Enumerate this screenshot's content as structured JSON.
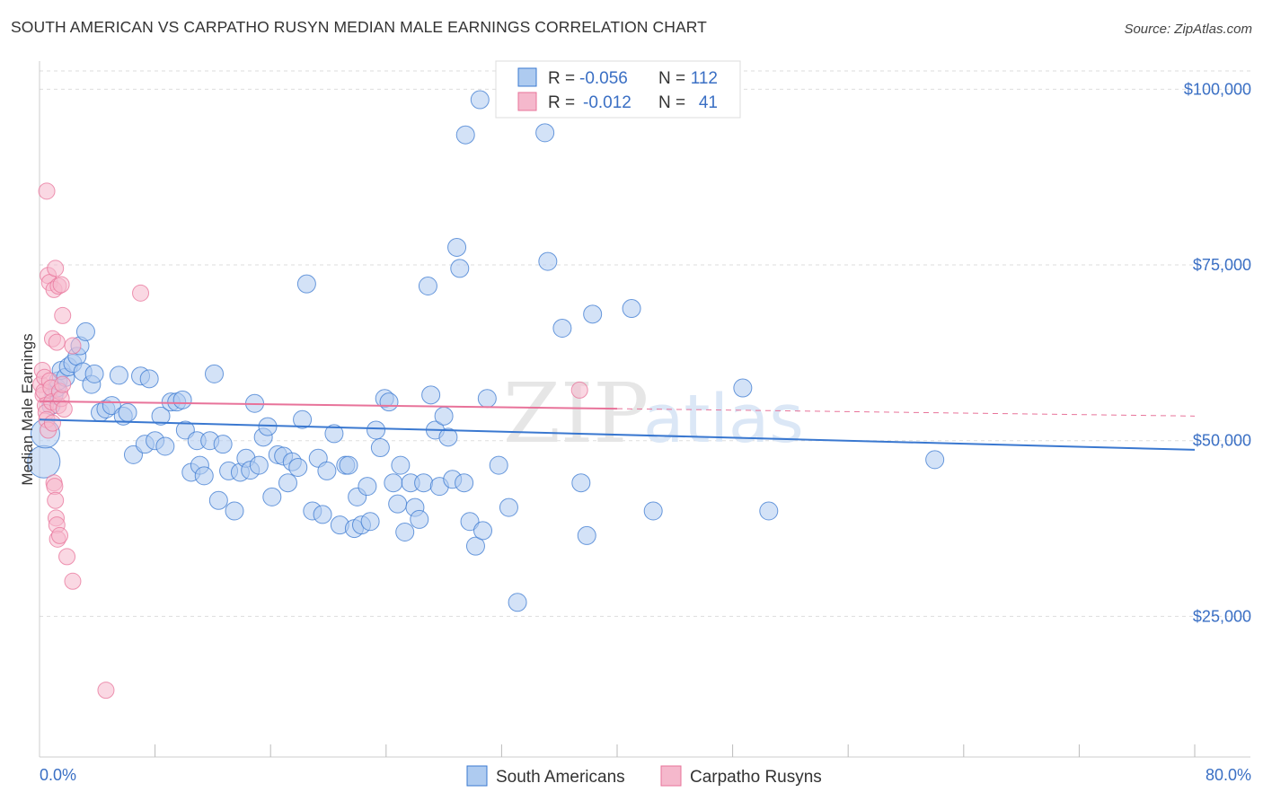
{
  "header": {
    "title": "SOUTH AMERICAN VS CARPATHO RUSYN MEDIAN MALE EARNINGS CORRELATION CHART",
    "source": "Source: ZipAtlas.com"
  },
  "watermark": {
    "zip": "ZIP",
    "atlas": "atlas"
  },
  "colors": {
    "blue": "#3a78d0",
    "blue_fill": "#aecbf0",
    "pink": "#e8739a",
    "pink_fill": "#f5b8cc",
    "label_blue": "#3a6fc4",
    "grid": "#dddddd"
  },
  "legend_top": {
    "r_label": "R =",
    "n_label": "N =",
    "rows": [
      {
        "r": "-0.056",
        "n": "112"
      },
      {
        "r": "-0.012",
        "n": "41"
      }
    ]
  },
  "chart_data": {
    "type": "scatter",
    "title": "SOUTH AMERICAN VS CARPATHO RUSYN MEDIAN MALE EARNINGS CORRELATION CHART",
    "ylabel": "Median Male Earnings",
    "xlabel": "",
    "xlim": [
      0,
      80
    ],
    "ylim": [
      5000,
      104000
    ],
    "x_tick_labels": {
      "min": "0.0%",
      "max": "80.0%"
    },
    "y_ticks": [
      {
        "value": 25000,
        "label": "$25,000"
      },
      {
        "value": 50000,
        "label": "$50,000"
      },
      {
        "value": 75000,
        "label": "$75,000"
      },
      {
        "value": 100000,
        "label": "$100,000"
      }
    ],
    "grid": true,
    "legend_position": "bottom",
    "series": [
      {
        "name": "South Americans",
        "color": "#3a78d0",
        "r": -0.056,
        "n": 112,
        "trend": {
          "x0": 0,
          "y0": 53000,
          "x1": 80,
          "y1": 48700,
          "dashed_from": null
        },
        "points": [
          [
            0.3,
            47000
          ],
          [
            0.4,
            51000
          ],
          [
            0.8,
            55000
          ],
          [
            1.0,
            56500
          ],
          [
            1.2,
            57500
          ],
          [
            1.3,
            58500
          ],
          [
            1.5,
            60000
          ],
          [
            1.8,
            59000
          ],
          [
            2.0,
            60500
          ],
          [
            2.3,
            61000
          ],
          [
            2.6,
            62000
          ],
          [
            2.8,
            63500
          ],
          [
            3.0,
            59800
          ],
          [
            3.2,
            65500
          ],
          [
            3.6,
            58000
          ],
          [
            3.8,
            59500
          ],
          [
            4.2,
            54000
          ],
          [
            4.6,
            54500
          ],
          [
            5.0,
            55000
          ],
          [
            5.5,
            59300
          ],
          [
            5.8,
            53500
          ],
          [
            6.1,
            54000
          ],
          [
            6.5,
            48000
          ],
          [
            7.0,
            59200
          ],
          [
            7.3,
            49500
          ],
          [
            7.6,
            58800
          ],
          [
            8.0,
            50000
          ],
          [
            8.4,
            53500
          ],
          [
            8.7,
            49200
          ],
          [
            9.1,
            55500
          ],
          [
            9.5,
            55500
          ],
          [
            9.9,
            55800
          ],
          [
            10.1,
            51500
          ],
          [
            10.5,
            45500
          ],
          [
            10.9,
            50000
          ],
          [
            11.1,
            46500
          ],
          [
            11.4,
            45000
          ],
          [
            11.8,
            50000
          ],
          [
            12.1,
            59500
          ],
          [
            12.4,
            41500
          ],
          [
            12.7,
            49500
          ],
          [
            13.1,
            45700
          ],
          [
            13.5,
            40000
          ],
          [
            13.9,
            45500
          ],
          [
            14.3,
            47500
          ],
          [
            14.6,
            45800
          ],
          [
            14.9,
            55300
          ],
          [
            15.2,
            46500
          ],
          [
            15.5,
            50500
          ],
          [
            15.8,
            52000
          ],
          [
            16.1,
            42000
          ],
          [
            16.5,
            48000
          ],
          [
            16.9,
            47800
          ],
          [
            17.2,
            44000
          ],
          [
            17.5,
            47000
          ],
          [
            17.9,
            46200
          ],
          [
            18.2,
            53000
          ],
          [
            18.5,
            72300
          ],
          [
            18.9,
            40000
          ],
          [
            19.3,
            47500
          ],
          [
            19.6,
            39500
          ],
          [
            19.9,
            45700
          ],
          [
            20.4,
            51000
          ],
          [
            20.8,
            38000
          ],
          [
            21.2,
            46500
          ],
          [
            21.4,
            46500
          ],
          [
            21.8,
            37500
          ],
          [
            22.0,
            42000
          ],
          [
            22.3,
            38000
          ],
          [
            22.7,
            43500
          ],
          [
            22.9,
            38500
          ],
          [
            23.3,
            51500
          ],
          [
            23.6,
            49000
          ],
          [
            23.9,
            56000
          ],
          [
            24.2,
            55500
          ],
          [
            24.5,
            44000
          ],
          [
            24.8,
            41000
          ],
          [
            25.0,
            46500
          ],
          [
            25.3,
            37000
          ],
          [
            25.7,
            44000
          ],
          [
            26.0,
            40500
          ],
          [
            26.3,
            38800
          ],
          [
            26.6,
            44000
          ],
          [
            26.9,
            72000
          ],
          [
            27.1,
            56500
          ],
          [
            27.4,
            51500
          ],
          [
            27.7,
            43500
          ],
          [
            28.0,
            53500
          ],
          [
            28.3,
            50500
          ],
          [
            28.6,
            44500
          ],
          [
            28.9,
            77500
          ],
          [
            29.1,
            74500
          ],
          [
            29.4,
            44000
          ],
          [
            29.8,
            38500
          ],
          [
            30.2,
            35000
          ],
          [
            30.7,
            37200
          ],
          [
            29.5,
            93500
          ],
          [
            30.5,
            98500
          ],
          [
            31.0,
            56000
          ],
          [
            31.8,
            46500
          ],
          [
            32.5,
            40500
          ],
          [
            33.1,
            27000
          ],
          [
            35.2,
            75500
          ],
          [
            35.0,
            93800
          ],
          [
            36.2,
            66000
          ],
          [
            37.5,
            44000
          ],
          [
            37.9,
            36500
          ],
          [
            38.3,
            68000
          ],
          [
            41.0,
            68800
          ],
          [
            42.5,
            40000
          ],
          [
            48.7,
            57500
          ],
          [
            50.5,
            40000
          ],
          [
            62.0,
            47300
          ]
        ]
      },
      {
        "name": "Carpatho Rusyns",
        "color": "#e8739a",
        "r": -0.012,
        "n": 41,
        "trend": {
          "x0": 0,
          "y0": 55600,
          "x1": 80,
          "y1": 53500,
          "dashed_from": 40
        },
        "points": [
          [
            0.1,
            58000
          ],
          [
            0.2,
            60000
          ],
          [
            0.25,
            56500
          ],
          [
            0.3,
            57000
          ],
          [
            0.35,
            59000
          ],
          [
            0.4,
            55000
          ],
          [
            0.45,
            54000
          ],
          [
            0.5,
            53000
          ],
          [
            0.6,
            51500
          ],
          [
            0.7,
            58500
          ],
          [
            0.8,
            57500
          ],
          [
            0.85,
            55500
          ],
          [
            0.9,
            52500
          ],
          [
            1.0,
            44000
          ],
          [
            1.05,
            43500
          ],
          [
            1.1,
            41500
          ],
          [
            1.15,
            39000
          ],
          [
            1.2,
            38000
          ],
          [
            1.25,
            36000
          ],
          [
            1.3,
            55000
          ],
          [
            1.4,
            57000
          ],
          [
            1.5,
            56000
          ],
          [
            1.6,
            58000
          ],
          [
            1.7,
            54500
          ],
          [
            0.5,
            85500
          ],
          [
            0.6,
            73500
          ],
          [
            0.7,
            72500
          ],
          [
            1.0,
            71500
          ],
          [
            1.1,
            74500
          ],
          [
            1.3,
            72000
          ],
          [
            1.5,
            72200
          ],
          [
            0.9,
            64500
          ],
          [
            1.2,
            64000
          ],
          [
            1.6,
            67800
          ],
          [
            2.3,
            63500
          ],
          [
            1.4,
            36500
          ],
          [
            1.9,
            33500
          ],
          [
            2.3,
            30000
          ],
          [
            4.6,
            14500
          ],
          [
            7.0,
            71000
          ],
          [
            37.4,
            57200
          ]
        ]
      }
    ]
  },
  "bottom_legend": {
    "items": [
      {
        "label": "South Americans"
      },
      {
        "label": "Carpatho Rusyns"
      }
    ]
  }
}
